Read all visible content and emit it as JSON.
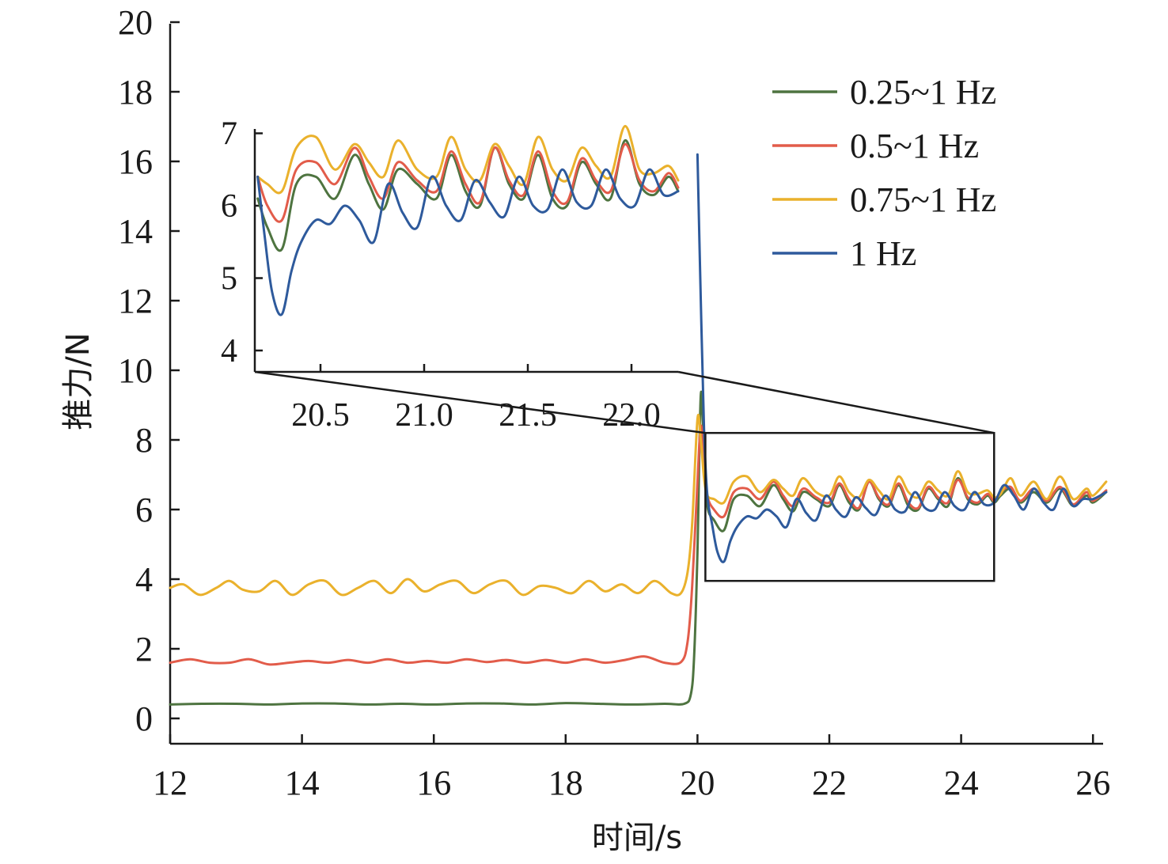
{
  "chart_data": {
    "type": "line",
    "xlabel": "时间/s",
    "ylabel": "推力/N",
    "xlim": [
      12,
      26.2
    ],
    "ylim": [
      -0.75,
      20
    ],
    "xticks": [
      "12",
      "14",
      "16",
      "18",
      "20",
      "22",
      "24",
      "26"
    ],
    "yticks": [
      "0",
      "2",
      "4",
      "6",
      "8",
      "10",
      "12",
      "14",
      "16",
      "18",
      "20"
    ],
    "legend_position": "top-right",
    "series": [
      {
        "name": "0.25~1 Hz",
        "color": "#4e7440",
        "x": [
          12.0,
          12.5,
          13.0,
          13.5,
          14.0,
          14.5,
          15.0,
          15.5,
          16.0,
          16.5,
          17.0,
          17.5,
          18.0,
          18.5,
          19.0,
          19.5,
          19.8,
          19.9,
          19.95,
          20.0,
          20.05,
          20.1,
          20.15,
          20.25,
          20.4,
          20.55,
          20.75,
          20.95,
          21.15,
          21.3,
          21.45,
          21.6,
          21.8,
          22.0,
          22.15,
          22.3,
          22.45,
          22.6,
          22.75,
          22.9,
          23.05,
          23.2,
          23.35,
          23.5,
          23.65,
          23.8,
          23.95,
          24.1,
          24.25,
          24.4,
          24.5,
          24.6,
          24.75,
          24.9,
          25.1,
          25.3,
          25.5,
          25.7,
          25.9,
          26.0,
          26.2
        ],
        "values": [
          0.4,
          0.42,
          0.42,
          0.4,
          0.43,
          0.43,
          0.4,
          0.42,
          0.4,
          0.43,
          0.43,
          0.4,
          0.44,
          0.42,
          0.4,
          0.42,
          0.42,
          0.7,
          1.8,
          4.8,
          9.3,
          7.6,
          6.1,
          5.7,
          5.4,
          6.3,
          6.4,
          6.1,
          6.7,
          6.3,
          5.95,
          6.5,
          6.3,
          6.1,
          6.7,
          6.2,
          6.0,
          6.8,
          6.3,
          6.1,
          6.7,
          6.1,
          6.0,
          6.6,
          6.3,
          6.1,
          6.9,
          6.3,
          6.15,
          6.4,
          6.2,
          6.4,
          6.6,
          6.2,
          6.5,
          6.2,
          6.6,
          6.1,
          6.4,
          6.2,
          6.5
        ]
      },
      {
        "name": "0.5~1 Hz",
        "color": "#e25c4a",
        "x": [
          12.0,
          12.3,
          12.6,
          12.9,
          13.2,
          13.5,
          13.8,
          14.1,
          14.4,
          14.7,
          15.0,
          15.3,
          15.6,
          15.9,
          16.2,
          16.5,
          16.8,
          17.1,
          17.4,
          17.7,
          18.0,
          18.3,
          18.6,
          18.9,
          19.2,
          19.5,
          19.75,
          19.85,
          19.92,
          20.0,
          20.05,
          20.1,
          20.15,
          20.25,
          20.4,
          20.55,
          20.75,
          20.95,
          21.15,
          21.3,
          21.45,
          21.6,
          21.8,
          22.0,
          22.15,
          22.3,
          22.45,
          22.6,
          22.75,
          22.9,
          23.05,
          23.2,
          23.35,
          23.5,
          23.65,
          23.8,
          23.95,
          24.1,
          24.25,
          24.4,
          24.5,
          24.6,
          24.75,
          24.9,
          25.1,
          25.3,
          25.5,
          25.7,
          25.9,
          26.0,
          26.2
        ],
        "values": [
          1.6,
          1.7,
          1.6,
          1.6,
          1.7,
          1.55,
          1.6,
          1.65,
          1.6,
          1.68,
          1.6,
          1.7,
          1.6,
          1.65,
          1.6,
          1.7,
          1.62,
          1.68,
          1.6,
          1.68,
          1.6,
          1.7,
          1.6,
          1.68,
          1.78,
          1.6,
          1.62,
          2.2,
          3.8,
          6.8,
          8.4,
          7.4,
          6.4,
          6.0,
          5.8,
          6.5,
          6.6,
          6.3,
          6.8,
          6.4,
          6.1,
          6.6,
          6.35,
          6.2,
          6.75,
          6.3,
          6.05,
          6.8,
          6.35,
          6.15,
          6.75,
          6.2,
          6.05,
          6.65,
          6.35,
          6.2,
          6.85,
          6.35,
          6.2,
          6.45,
          6.25,
          6.5,
          6.65,
          6.25,
          6.6,
          6.25,
          6.65,
          6.15,
          6.5,
          6.25,
          6.55
        ]
      },
      {
        "name": "0.75~1 Hz",
        "color": "#eab12c",
        "x": [
          12.0,
          12.2,
          12.45,
          12.7,
          12.9,
          13.1,
          13.35,
          13.6,
          13.85,
          14.1,
          14.35,
          14.6,
          14.85,
          15.1,
          15.35,
          15.6,
          15.85,
          16.1,
          16.35,
          16.6,
          16.85,
          17.1,
          17.35,
          17.6,
          17.85,
          18.1,
          18.35,
          18.6,
          18.85,
          19.1,
          19.35,
          19.6,
          19.75,
          19.85,
          19.92,
          20.0,
          20.05,
          20.1,
          20.15,
          20.25,
          20.4,
          20.55,
          20.75,
          20.95,
          21.15,
          21.3,
          21.45,
          21.6,
          21.8,
          22.0,
          22.15,
          22.3,
          22.45,
          22.6,
          22.75,
          22.9,
          23.05,
          23.2,
          23.35,
          23.5,
          23.65,
          23.8,
          23.95,
          24.1,
          24.25,
          24.4,
          24.5,
          24.6,
          24.75,
          24.9,
          25.1,
          25.3,
          25.5,
          25.7,
          25.9,
          26.0,
          26.2
        ],
        "values": [
          3.75,
          3.85,
          3.55,
          3.75,
          3.95,
          3.7,
          3.65,
          3.95,
          3.55,
          3.85,
          3.95,
          3.55,
          3.75,
          3.95,
          3.6,
          4.0,
          3.65,
          3.85,
          3.95,
          3.6,
          3.85,
          3.95,
          3.55,
          3.8,
          3.75,
          3.6,
          3.95,
          3.65,
          3.85,
          3.6,
          3.95,
          3.6,
          3.6,
          4.2,
          5.6,
          8.6,
          8.0,
          6.9,
          6.4,
          6.3,
          6.2,
          6.8,
          6.95,
          6.5,
          6.85,
          6.6,
          6.4,
          6.9,
          6.5,
          6.4,
          6.95,
          6.5,
          6.35,
          6.85,
          6.55,
          6.3,
          6.95,
          6.5,
          6.35,
          6.8,
          6.55,
          6.4,
          7.1,
          6.5,
          6.45,
          6.55,
          6.35,
          6.45,
          6.9,
          6.4,
          6.8,
          6.3,
          6.95,
          6.3,
          6.6,
          6.4,
          6.8
        ]
      },
      {
        "name": "1 Hz",
        "color": "#2e5a9c",
        "x": [
          20.0,
          20.05,
          20.1,
          20.15,
          20.22,
          20.3,
          20.4,
          20.5,
          20.6,
          20.75,
          20.9,
          21.05,
          21.2,
          21.35,
          21.5,
          21.65,
          21.8,
          21.95,
          22.1,
          22.25,
          22.4,
          22.55,
          22.7,
          22.85,
          23.0,
          23.15,
          23.3,
          23.45,
          23.6,
          23.75,
          23.9,
          24.05,
          24.2,
          24.35,
          24.5,
          24.65,
          24.8,
          24.95,
          25.1,
          25.25,
          25.4,
          25.55,
          25.7,
          25.85,
          26.0,
          26.2
        ],
        "values": [
          16.2,
          12.0,
          8.3,
          6.4,
          5.6,
          4.8,
          4.5,
          5.1,
          5.5,
          5.8,
          5.75,
          6.0,
          5.8,
          5.5,
          6.3,
          5.9,
          5.7,
          6.4,
          6.0,
          5.8,
          6.35,
          6.05,
          5.85,
          6.4,
          6.0,
          5.95,
          6.5,
          6.05,
          6.0,
          6.5,
          6.1,
          6.0,
          6.5,
          6.15,
          6.2,
          6.7,
          6.4,
          6.0,
          6.6,
          6.2,
          6.0,
          6.6,
          6.1,
          6.3,
          6.3,
          6.5
        ]
      }
    ],
    "inset": {
      "xticks": [
        "20.5",
        "21.0",
        "21.5",
        "22.0"
      ],
      "yticks": [
        "4",
        "5",
        "6",
        "7"
      ],
      "xlim": [
        20.18,
        22.24
      ],
      "ylim": [
        3.6,
        7.2
      ],
      "zoom_box": {
        "x0": 20.12,
        "x1": 24.5,
        "y0": 3.95,
        "y1": 8.2
      },
      "inset_x_range": [
        20.12,
        24.5
      ]
    }
  }
}
